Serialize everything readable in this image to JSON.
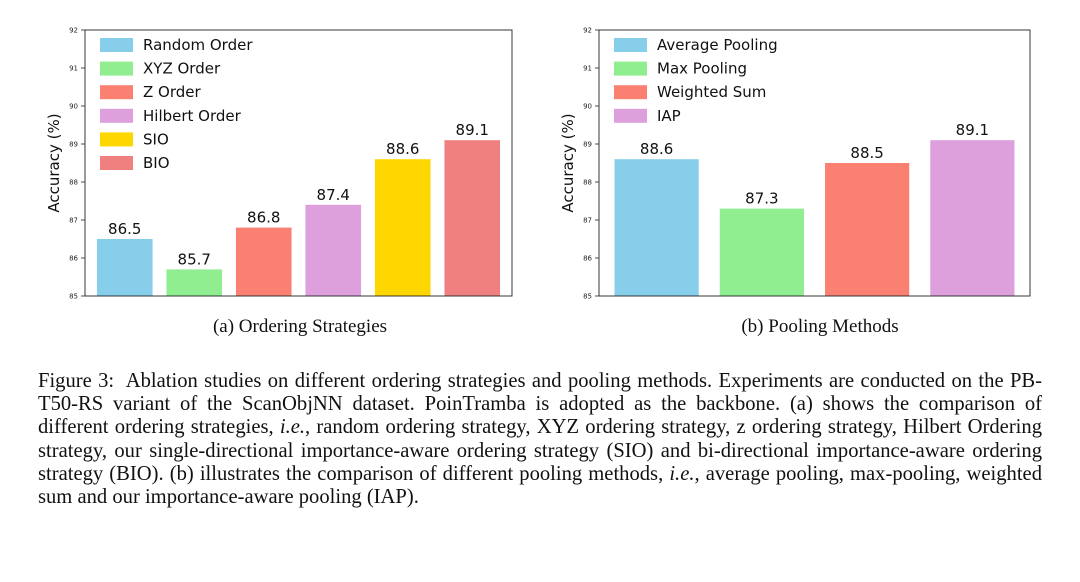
{
  "chart_data": [
    {
      "type": "bar",
      "categories": [
        "Random Order",
        "XYZ Order",
        "Z Order",
        "Hilbert Order",
        "SIO",
        "BIO"
      ],
      "values": [
        86.5,
        85.7,
        86.8,
        87.4,
        88.6,
        89.1
      ],
      "value_labels": [
        "86.5",
        "85.7",
        "86.8",
        "87.4",
        "88.6",
        "89.1"
      ],
      "colors": [
        "#87ceeb",
        "#90ee90",
        "#fa8072",
        "#dda0dd",
        "#ffd700",
        "#f08080"
      ],
      "legend": [
        "Random Order",
        "XYZ Order",
        "Z Order",
        "Hilbert Order",
        "SIO",
        "BIO"
      ],
      "legend_position": "top-left",
      "ylabel": "Accuracy (%)",
      "xlabel": "",
      "ylim": [
        85,
        92
      ],
      "yticks": [
        "85",
        "86",
        "87",
        "88",
        "89",
        "90",
        "91",
        "92"
      ],
      "grid": false,
      "subcaption": "(a)  Ordering Strategies"
    },
    {
      "type": "bar",
      "categories": [
        "Average Pooling",
        "Max Pooling",
        "Weighted Sum",
        "IAP"
      ],
      "values": [
        88.6,
        87.3,
        88.5,
        89.1
      ],
      "value_labels": [
        "88.6",
        "87.3",
        "88.5",
        "89.1"
      ],
      "colors": [
        "#87ceeb",
        "#90ee90",
        "#fa8072",
        "#dda0dd"
      ],
      "legend": [
        "Average Pooling",
        "Max Pooling",
        "Weighted Sum",
        "IAP"
      ],
      "legend_position": "top-left",
      "ylabel": "Accuracy (%)",
      "xlabel": "",
      "ylim": [
        85,
        92
      ],
      "yticks": [
        "85",
        "86",
        "87",
        "88",
        "89",
        "90",
        "91",
        "92"
      ],
      "grid": false,
      "subcaption": "(b)  Pooling Methods"
    }
  ],
  "caption": {
    "label": "Figure 3:",
    "t1": "Ablation studies on different ordering strategies and pooling methods. Experiments are conducted on the PB-T50-RS variant of the ScanObjNN dataset. PoinTramba is adopted as the backbone. (a) shows the comparison of different ordering strategies, ",
    "ie1": "i.e.",
    "t2": ", random ordering strategy, XYZ ordering strategy, z ordering strategy, Hilbert Ordering strategy, our single-directional importance-aware ordering strategy (SIO) and bi-directional importance-aware ordering strategy (BIO). (b) illustrates the comparison of different pooling methods, ",
    "ie2": "i.e.",
    "t3": ", average pooling, max-pooling, weighted sum and our importance-aware pooling (IAP)."
  }
}
